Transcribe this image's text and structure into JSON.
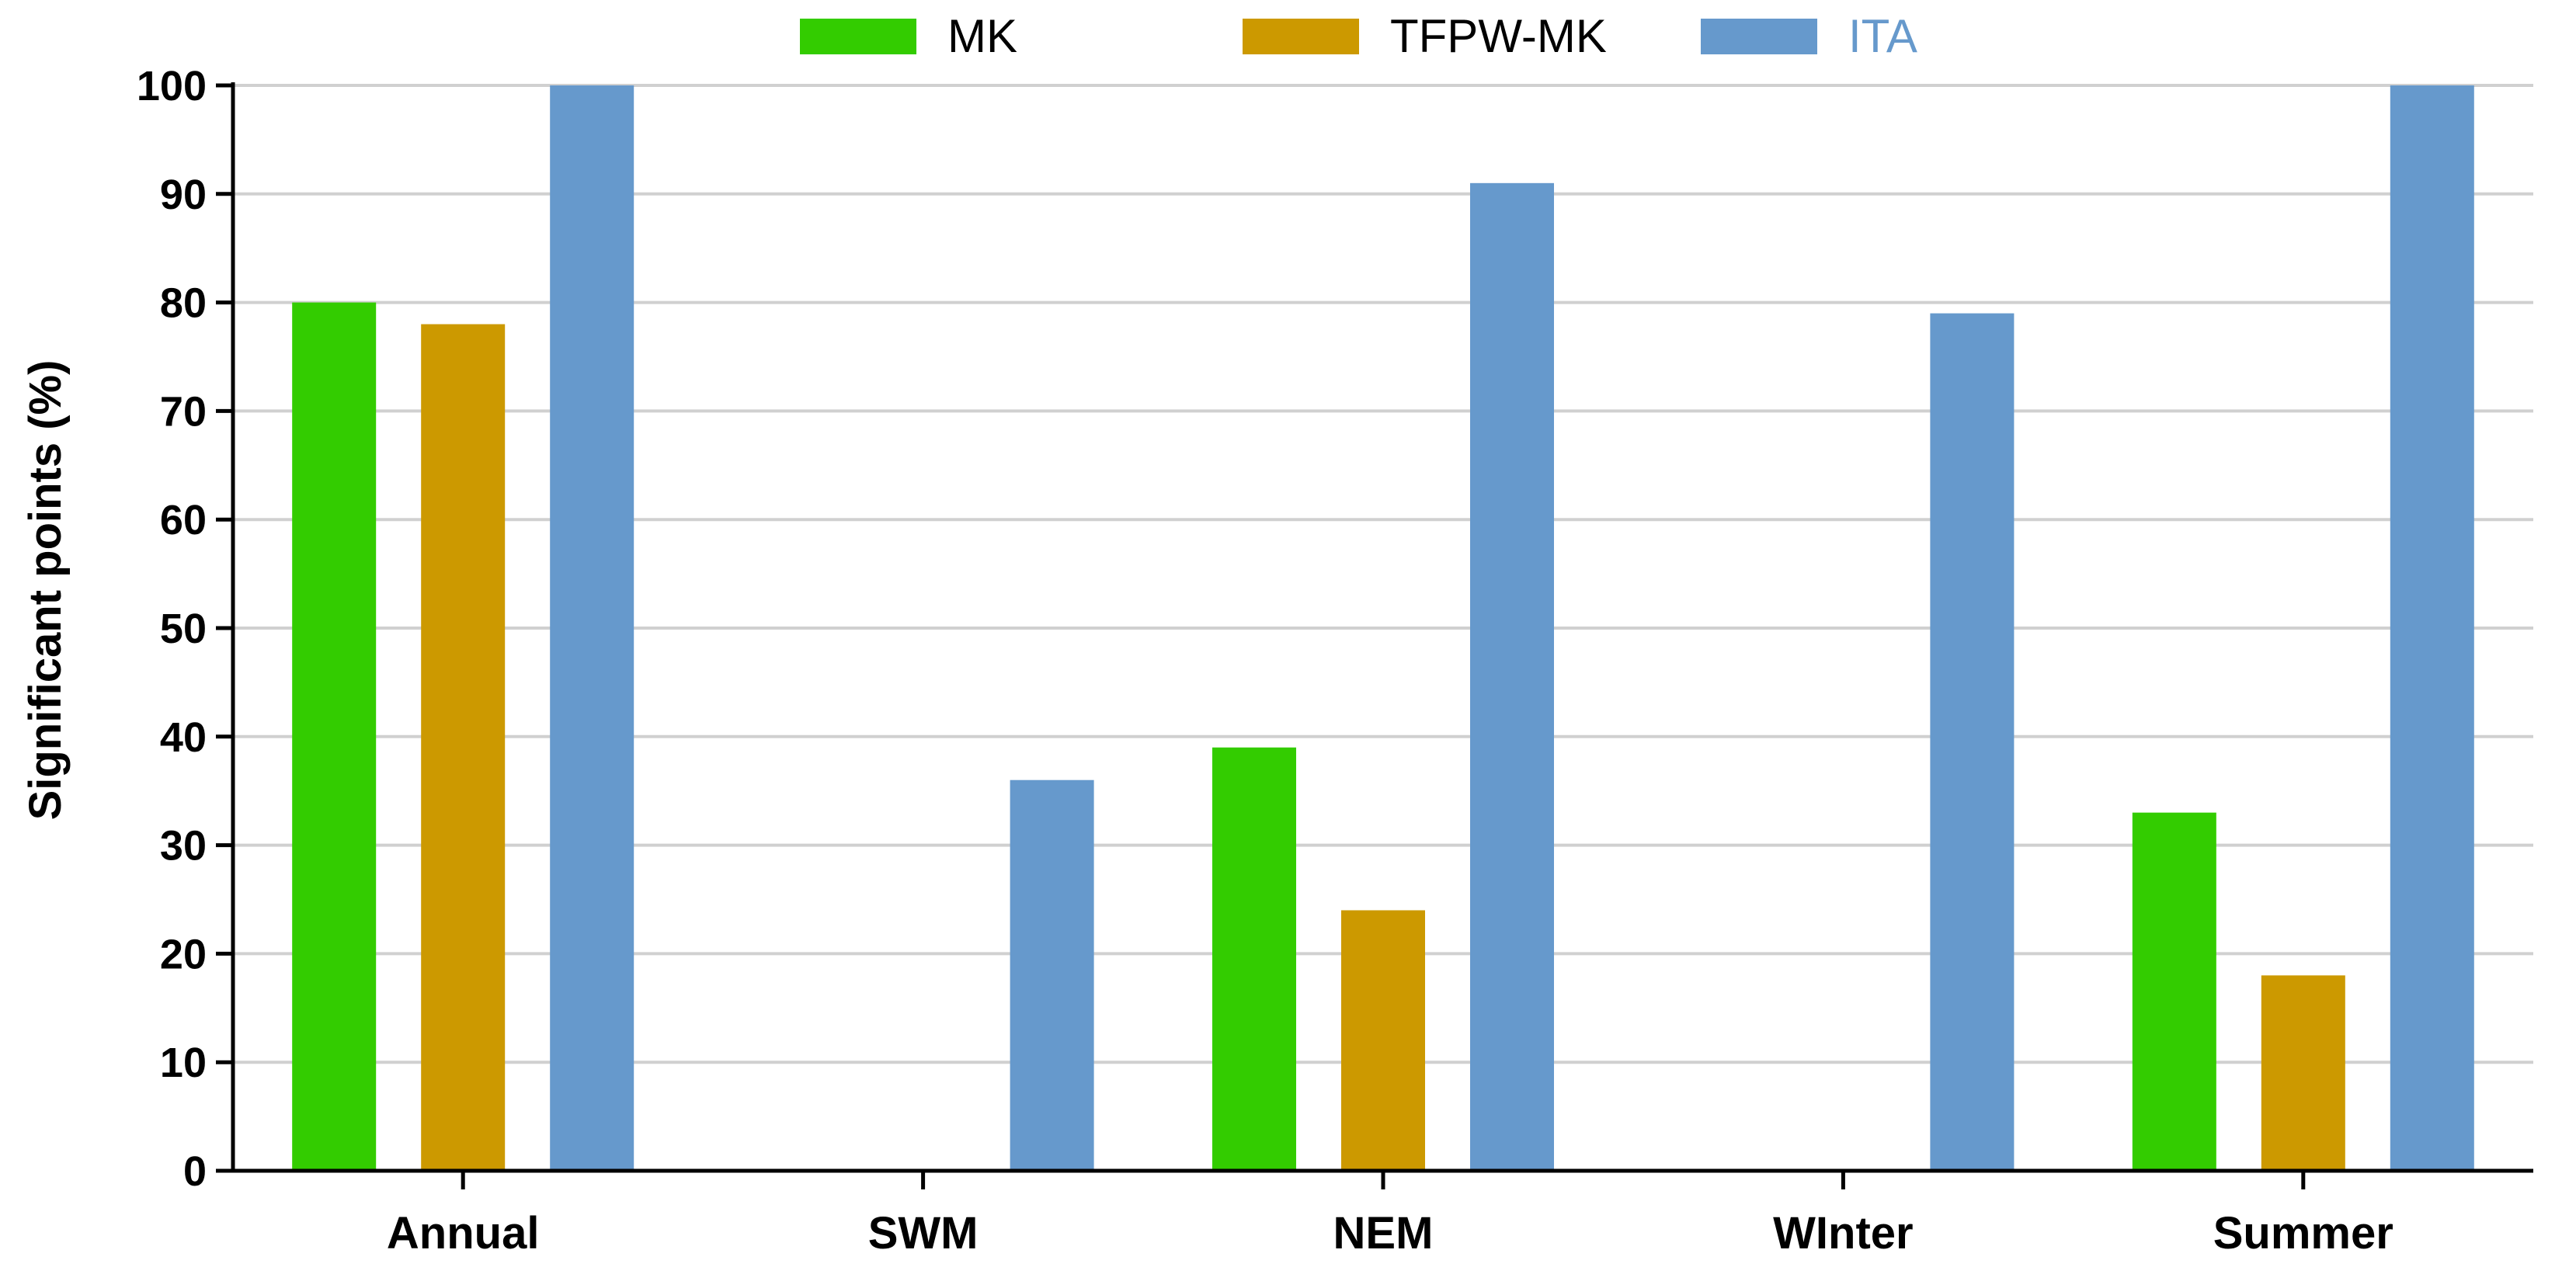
{
  "chart_data": {
    "type": "bar",
    "title": "",
    "xlabel": "",
    "ylabel": "Significant points (%)",
    "ylim": [
      0,
      100
    ],
    "yticks": [
      0,
      10,
      20,
      30,
      40,
      50,
      60,
      70,
      80,
      90,
      100
    ],
    "grid": true,
    "legend_position": "top-center",
    "categories": [
      "Annual",
      "SWM",
      "NEM",
      "WInter",
      "Summer"
    ],
    "series": [
      {
        "name": "MK",
        "color": "#33cc00",
        "label_color": "#000000",
        "values": [
          80,
          0,
          39,
          0,
          33
        ]
      },
      {
        "name": "TFPW-MK",
        "color": "#cc9900",
        "label_color": "#000000",
        "values": [
          78,
          0,
          24,
          0,
          18
        ]
      },
      {
        "name": "ITA",
        "color": "#6699cc",
        "label_color": "#6699cc",
        "values": [
          100,
          36,
          91,
          79,
          100
        ]
      }
    ]
  }
}
